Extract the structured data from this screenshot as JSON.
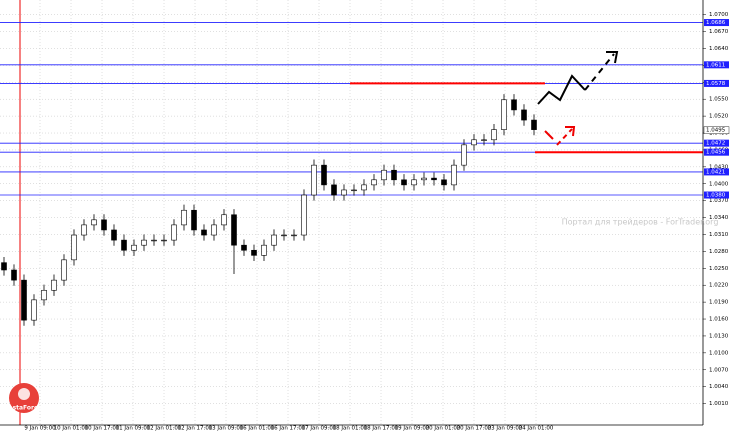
{
  "chart_data": {
    "type": "candlestick",
    "open": [
      1.026,
      1.0247,
      1.0229,
      1.0158,
      1.0194,
      1.0211,
      1.0229,
      1.0265,
      1.0309,
      1.0327,
      1.0336,
      1.0318,
      1.03,
      1.0282,
      1.0291,
      1.03,
      1.03,
      1.03,
      1.0327,
      1.0353,
      1.0318,
      1.0309,
      1.0327,
      1.0345,
      1.0291,
      1.0282,
      1.0273,
      1.0291,
      1.0309,
      1.0309,
      1.0309,
      1.038,
      1.0433,
      1.0398,
      1.038,
      1.0389,
      1.0389,
      1.0398,
      1.0407,
      1.0424,
      1.0407,
      1.0398,
      1.0407,
      1.041,
      1.0407,
      1.0398,
      1.0433,
      1.0469,
      1.0478,
      1.0478,
      1.0496,
      1.0549,
      1.0531,
      1.0513
    ],
    "high": [
      1.027,
      1.0257,
      1.0239,
      1.0204,
      1.0221,
      1.0239,
      1.0275,
      1.0319,
      1.0337,
      1.0346,
      1.0346,
      1.0328,
      1.031,
      1.0301,
      1.031,
      1.031,
      1.031,
      1.0337,
      1.0363,
      1.0363,
      1.0328,
      1.0337,
      1.0355,
      1.0355,
      1.0301,
      1.0292,
      1.0301,
      1.0319,
      1.0319,
      1.0319,
      1.039,
      1.0443,
      1.0443,
      1.0408,
      1.0399,
      1.0399,
      1.0408,
      1.0417,
      1.0434,
      1.0434,
      1.0417,
      1.0417,
      1.042,
      1.042,
      1.0417,
      1.0443,
      1.0479,
      1.0488,
      1.0488,
      1.0506,
      1.0559,
      1.0559,
      1.0541,
      1.0523
    ],
    "low": [
      1.0237,
      1.0219,
      1.0148,
      1.0148,
      1.0184,
      1.0201,
      1.0219,
      1.0255,
      1.0299,
      1.0317,
      1.0308,
      1.029,
      1.0272,
      1.0272,
      1.0281,
      1.029,
      1.029,
      1.029,
      1.0317,
      1.0308,
      1.0299,
      1.0299,
      1.0317,
      1.024,
      1.0272,
      1.0263,
      1.0263,
      1.0281,
      1.0299,
      1.0299,
      1.0299,
      1.037,
      1.0388,
      1.037,
      1.037,
      1.0379,
      1.0379,
      1.0388,
      1.0397,
      1.0397,
      1.0388,
      1.0388,
      1.0397,
      1.0397,
      1.0388,
      1.0388,
      1.0423,
      1.0459,
      1.0468,
      1.0468,
      1.0486,
      1.0521,
      1.0503,
      1.0486
    ],
    "close": [
      1.0247,
      1.0229,
      1.0158,
      1.0194,
      1.0211,
      1.0229,
      1.0265,
      1.0309,
      1.0327,
      1.0336,
      1.0318,
      1.03,
      1.0282,
      1.0291,
      1.03,
      1.03,
      1.03,
      1.0327,
      1.0353,
      1.0318,
      1.0309,
      1.0327,
      1.0345,
      1.0291,
      1.0282,
      1.0273,
      1.0291,
      1.0309,
      1.0309,
      1.0309,
      1.038,
      1.0433,
      1.0398,
      1.038,
      1.0389,
      1.0389,
      1.0398,
      1.0407,
      1.0424,
      1.0407,
      1.0398,
      1.0407,
      1.041,
      1.0407,
      1.0398,
      1.0433,
      1.0469,
      1.0478,
      1.0478,
      1.0496,
      1.0549,
      1.0531,
      1.0513,
      1.0496
    ],
    "ylim": [
      0.9972,
      1.0726
    ],
    "yticks": [
      {
        "value": 1.001,
        "label": "1.0010"
      },
      {
        "value": 1.004,
        "label": "1.0040"
      },
      {
        "value": 1.007,
        "label": "1.0070"
      },
      {
        "value": 1.01,
        "label": "1.0100"
      },
      {
        "value": 1.013,
        "label": "1.0130"
      },
      {
        "value": 1.016,
        "label": "1.0160"
      },
      {
        "value": 1.019,
        "label": "1.0190"
      },
      {
        "value": 1.022,
        "label": "1.0220"
      },
      {
        "value": 1.025,
        "label": "1.0250"
      },
      {
        "value": 1.028,
        "label": "1.0280"
      },
      {
        "value": 1.031,
        "label": "1.0310"
      },
      {
        "value": 1.034,
        "label": "1.0340"
      },
      {
        "value": 1.037,
        "label": "1.0370"
      },
      {
        "value": 1.04,
        "label": "1.0400"
      },
      {
        "value": 1.043,
        "label": "1.0430"
      },
      {
        "value": 1.046,
        "label": "1.0460"
      },
      {
        "value": 1.049,
        "label": "1.0490"
      },
      {
        "value": 1.052,
        "label": "1.0520"
      },
      {
        "value": 1.055,
        "label": "1.0550"
      },
      {
        "value": 1.058,
        "label": "1.0580"
      },
      {
        "value": 1.061,
        "label": "1.0610"
      },
      {
        "value": 1.064,
        "label": "1.0640"
      },
      {
        "value": 1.067,
        "label": "1.0670"
      },
      {
        "value": 1.07,
        "label": "1.0700"
      }
    ],
    "xtick_labels": [
      "9 Jan 09:00",
      "10 Jan 01:00",
      "10 Jan 17:00",
      "11 Jan 09:00",
      "12 Jan 01:00",
      "12 Jan 17:00",
      "13 Jan 09:00",
      "16 Jan 01:00",
      "16 Jan 17:00",
      "17 Jan 09:00",
      "18 Jan 01:00",
      "18 Jan 17:00",
      "19 Jan 09:00",
      "20 Jan 01:00",
      "20 Jan 17:00",
      "23 Jan 09:00",
      "24 Jan 01:00"
    ],
    "levels": [
      {
        "value": 1.0686,
        "label": "1.0686"
      },
      {
        "value": 1.0611,
        "label": "1.0611"
      },
      {
        "value": 1.0578,
        "label": "1.0578"
      },
      {
        "value": 1.0472,
        "label": "1.0472"
      },
      {
        "value": 1.0456,
        "label": "1.0456"
      },
      {
        "value": 1.0421,
        "label": "1.0421"
      },
      {
        "value": 1.038,
        "label": "1.0380"
      }
    ],
    "level_color": "#2020ff",
    "current_price": {
      "value": 1.0495,
      "label": "1.0495"
    },
    "resistance": {
      "value": 1.0578,
      "color": "#ff0000"
    },
    "support": {
      "value": 1.0456,
      "color": "#ff0000"
    },
    "grid": true,
    "watermark": "Портал для трейдеров - ForTrader.org",
    "logo": "InstaForex"
  }
}
